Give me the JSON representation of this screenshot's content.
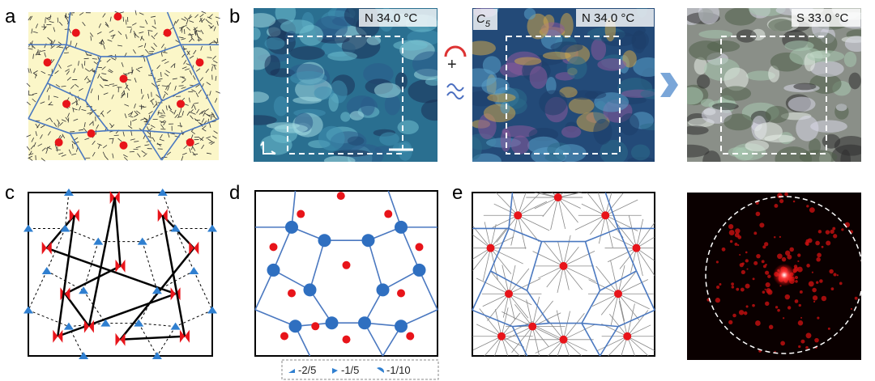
{
  "panel_labels": [
    "a",
    "b",
    "c",
    "d",
    "e"
  ],
  "b_overlays": {
    "left": "N 34.0 °C",
    "middle": "N 34.0 °C",
    "right": "S 33.0 °C",
    "middle_phase": "C",
    "middle_phase_sub": "5"
  },
  "b_icon_plus": "+",
  "d_legend": [
    "-2/5",
    "-1/5",
    "-1/10"
  ]
}
